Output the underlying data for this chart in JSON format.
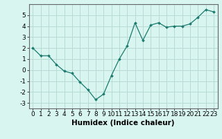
{
  "x": [
    0,
    1,
    2,
    3,
    4,
    5,
    6,
    7,
    8,
    9,
    10,
    11,
    12,
    13,
    14,
    15,
    16,
    17,
    18,
    19,
    20,
    21,
    22,
    23
  ],
  "y": [
    2.0,
    1.3,
    1.3,
    0.5,
    -0.1,
    -0.3,
    -1.1,
    -1.8,
    -2.7,
    -2.2,
    -0.5,
    1.0,
    2.2,
    4.3,
    2.7,
    4.1,
    4.3,
    3.9,
    4.0,
    4.0,
    4.2,
    4.8,
    5.5,
    5.3
  ],
  "line_color": "#1a7a6e",
  "marker": "D",
  "marker_size": 2.0,
  "bg_color": "#d8f5f0",
  "grid_color": "#b8dbd6",
  "xlabel": "Humidex (Indice chaleur)",
  "ylim": [
    -3.5,
    6.0
  ],
  "xlim": [
    -0.5,
    23.5
  ],
  "yticks": [
    -3,
    -2,
    -1,
    0,
    1,
    2,
    3,
    4,
    5
  ],
  "xticks": [
    0,
    1,
    2,
    3,
    4,
    5,
    6,
    7,
    8,
    9,
    10,
    11,
    12,
    13,
    14,
    15,
    16,
    17,
    18,
    19,
    20,
    21,
    22,
    23
  ],
  "tick_fontsize": 6.5,
  "xlabel_fontsize": 7.5,
  "line_width": 0.9,
  "spine_color": "#666666"
}
